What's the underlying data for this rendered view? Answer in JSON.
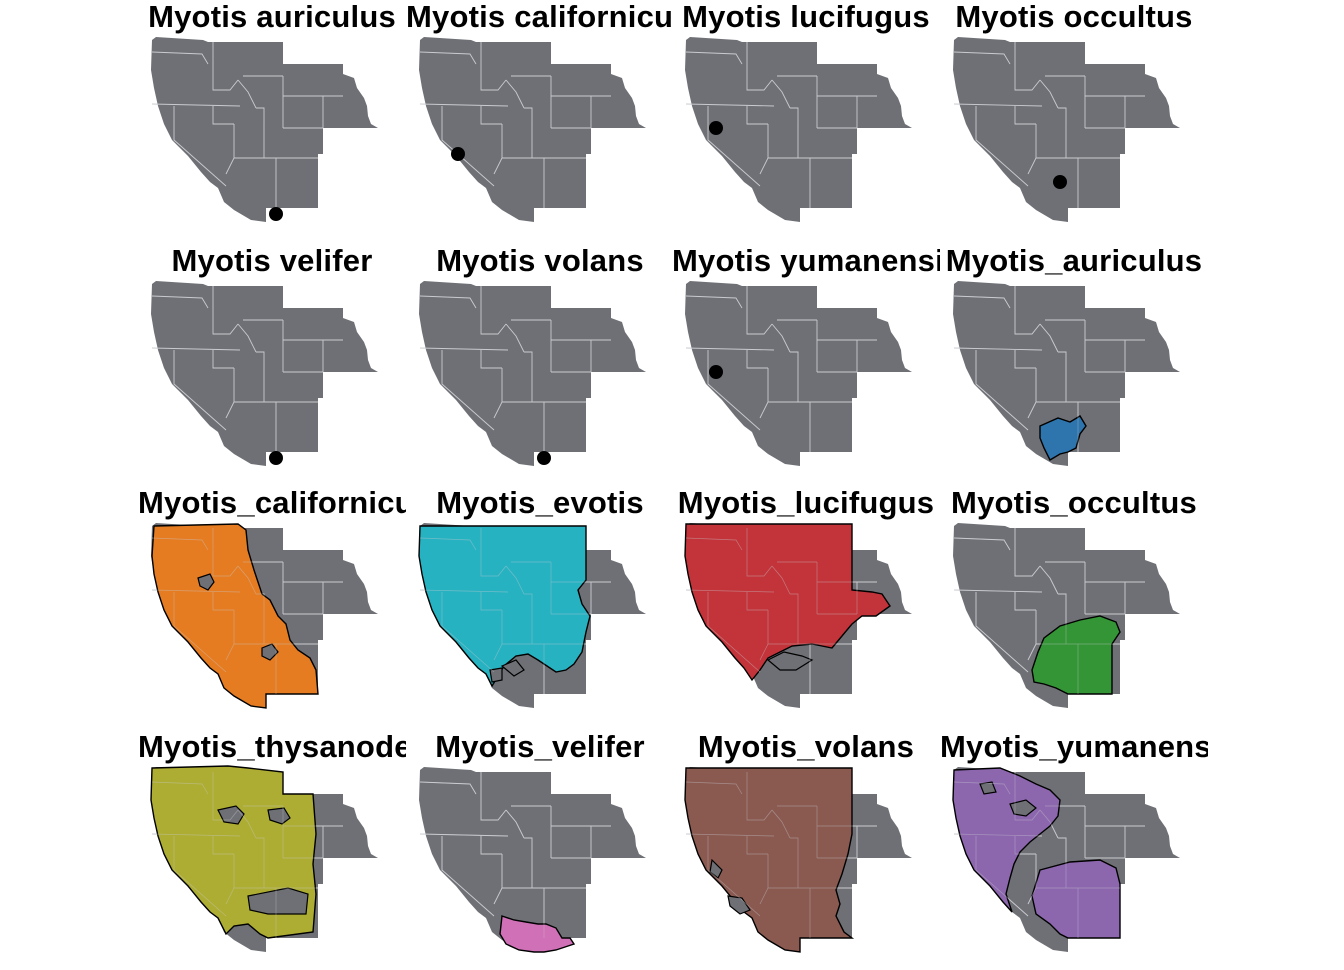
{
  "figure": {
    "base_map": {
      "land_color": "#6e7075",
      "border_color": "#c9cbd0"
    },
    "panels": [
      {
        "title": "Myotis auriculus",
        "kind": "point",
        "location": "southern Arizona"
      },
      {
        "title": "Myotis californicus",
        "kind": "point",
        "location": "central California"
      },
      {
        "title": "Myotis lucifugus",
        "kind": "point",
        "location": "northern California"
      },
      {
        "title": "Myotis occultus",
        "kind": "point",
        "location": "central Arizona"
      },
      {
        "title": "Myotis velifer",
        "kind": "point",
        "location": "southern Arizona"
      },
      {
        "title": "Myotis volans",
        "kind": "point",
        "location": "southern Arizona"
      },
      {
        "title": "Myotis yumanensis",
        "kind": "point",
        "location": "northern California"
      },
      {
        "title": "Myotis_auriculus",
        "kind": "range",
        "color": "#2e74ad",
        "shape": "auriculus"
      },
      {
        "title": "Myotis_californicus",
        "kind": "range",
        "color": "#e57c22",
        "shape": "californicus"
      },
      {
        "title": "Myotis_evotis",
        "kind": "range",
        "color": "#27b2c1",
        "shape": "evotis"
      },
      {
        "title": "Myotis_lucifugus",
        "kind": "range",
        "color": "#c2343a",
        "shape": "lucifugus"
      },
      {
        "title": "Myotis_occultus",
        "kind": "range",
        "color": "#349536",
        "shape": "occultus"
      },
      {
        "title": "Myotis_thysanodes",
        "kind": "range",
        "color": "#adad33",
        "shape": "thysanodes"
      },
      {
        "title": "Myotis_velifer",
        "kind": "range",
        "color": "#d070b6",
        "shape": "velifer"
      },
      {
        "title": "Myotis_volans",
        "kind": "range",
        "color": "#8a5a51",
        "shape": "volans"
      },
      {
        "title": "Myotis_yumanensis",
        "kind": "range",
        "color": "#8d67ae",
        "shape": "yumanensis"
      }
    ]
  }
}
